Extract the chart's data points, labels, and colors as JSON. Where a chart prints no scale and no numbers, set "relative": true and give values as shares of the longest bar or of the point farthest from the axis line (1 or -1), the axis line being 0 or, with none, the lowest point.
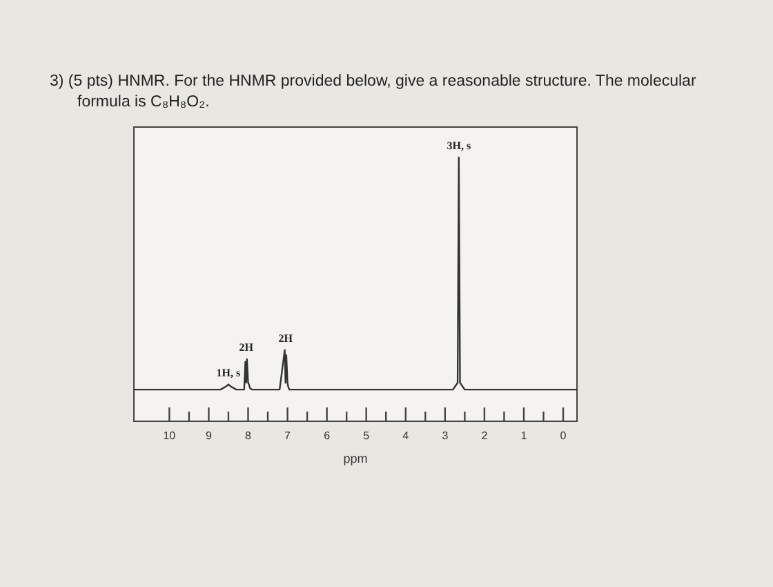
{
  "chart_data": {
    "type": "line",
    "title": "3) (5 pts) HNMR. For the HNMR provided below, give a reasonable structure. The molecular formula is C₈H₈O₂.",
    "xlabel": "ppm",
    "x": [
      10.9,
      9.0,
      8.7,
      8.55,
      8.5,
      8.45,
      8.3,
      8.1,
      8.07,
      8.05,
      8.03,
      8.0,
      7.98,
      7.95,
      7.9,
      7.2,
      7.07,
      7.05,
      7.03,
      7.0,
      6.98,
      6.95,
      6.9,
      2.8,
      2.68,
      2.65,
      2.62,
      2.5,
      -0.35
    ],
    "series": [
      {
        "color": "#333333",
        "values": [
          0.12,
          0.12,
          0.12,
          0.133,
          0.14,
          0.133,
          0.12,
          0.12,
          0.225,
          0.146,
          0.235,
          0.146,
          0.14,
          0.125,
          0.12,
          0.12,
          0.27,
          0.146,
          0.25,
          0.146,
          0.13,
          0.12,
          0.12,
          0.12,
          0.146,
          1,
          0.146,
          0.12,
          0.12
        ]
      }
    ],
    "relative": true,
    "xlim": [
      10.9,
      -0.35
    ],
    "xticks": [
      10,
      {
        "value": 9.5,
        "label": null
      },
      9,
      {
        "value": 8.5,
        "label": null
      },
      8,
      {
        "value": 7.5,
        "label": null
      },
      7,
      {
        "value": 6.5,
        "label": null
      },
      6,
      {
        "value": 5.5,
        "label": null
      },
      5,
      {
        "value": 4.5,
        "label": null
      },
      4,
      {
        "value": 3.5,
        "label": null
      },
      3,
      {
        "value": 2.5,
        "label": null
      },
      2,
      {
        "value": 1.5,
        "label": null
      },
      1,
      {
        "value": 0.5,
        "label": null
      },
      0
    ],
    "tick_labels": "x",
    "grid": false,
    "legend": false,
    "marker": "none",
    "line_style": "solid",
    "annotations": [
      {
        "text": "1H, s",
        "x": 8.5,
        "y": 0.14
      },
      {
        "text": "2H",
        "x": 8.05,
        "y": 0.235
      },
      {
        "text": "2H",
        "x": 7.05,
        "y": 0.27
      },
      {
        "text": "3H, s",
        "x": 2.65,
        "y": 1
      }
    ]
  }
}
